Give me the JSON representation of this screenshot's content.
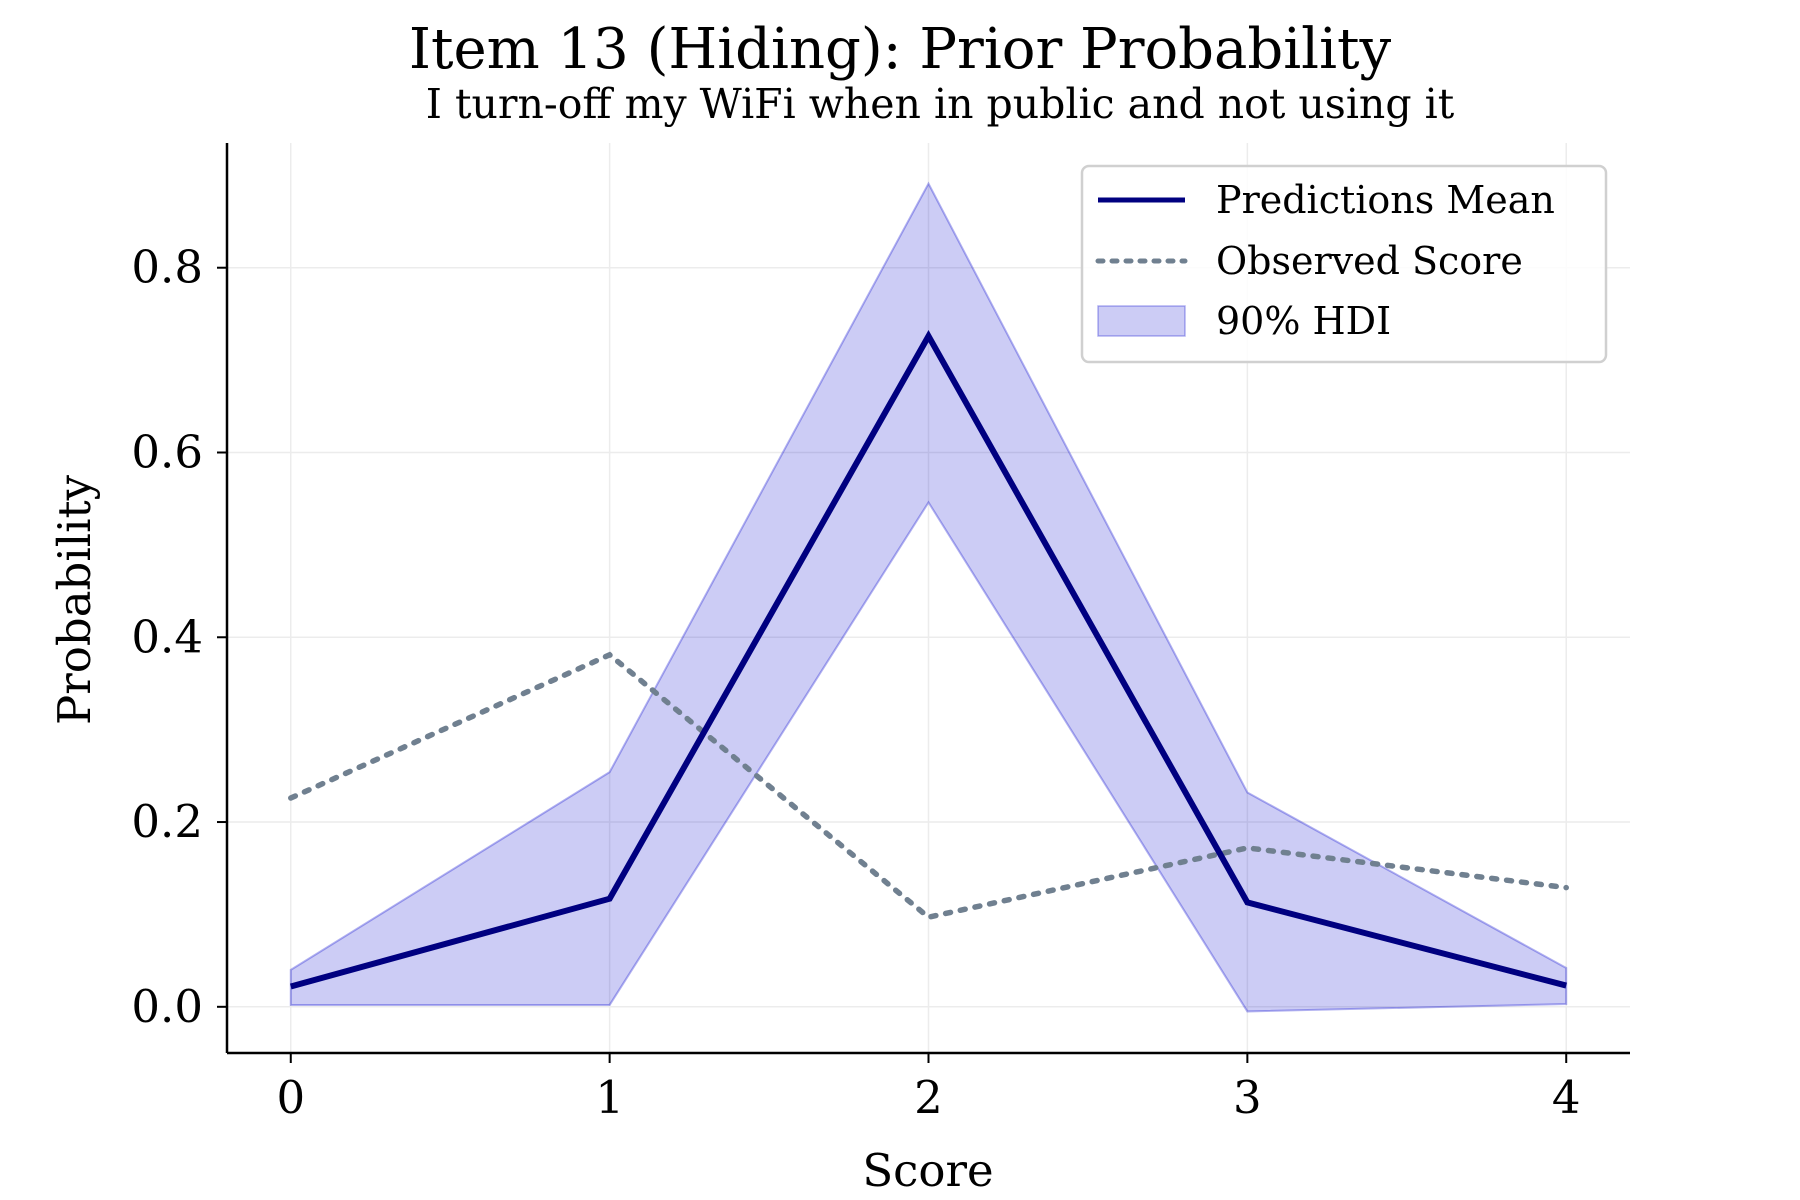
{
  "chart_data": {
    "type": "line",
    "title": "Item 13 (Hiding): Prior Probability",
    "subtitle": "I turn-off my WiFi when in public and not using it",
    "xlabel": "Score",
    "ylabel": "Probability",
    "x": [
      0,
      1,
      2,
      3,
      4
    ],
    "x_ticks": [
      "0",
      "1",
      "2",
      "3",
      "4"
    ],
    "y_ticks": [
      "0.0",
      "0.2",
      "0.4",
      "0.6",
      "0.8"
    ],
    "xlim": [
      -0.2,
      4.2
    ],
    "ylim": [
      -0.05,
      0.935
    ],
    "grid": true,
    "legend_position": "top-right",
    "series": [
      {
        "name": "Predictions Mean",
        "style": "solid",
        "color": "#000080",
        "values": [
          0.022,
          0.117,
          0.726,
          0.113,
          0.023
        ]
      },
      {
        "name": "Observed Score",
        "style": "dotted",
        "color": "#708090",
        "values": [
          0.226,
          0.381,
          0.097,
          0.172,
          0.129
        ]
      }
    ],
    "band": {
      "name": "90% HDI",
      "color": "#0000cd",
      "lower": [
        0.002,
        0.002,
        0.546,
        -0.005,
        0.003
      ],
      "upper": [
        0.04,
        0.254,
        0.891,
        0.232,
        0.042
      ]
    }
  }
}
